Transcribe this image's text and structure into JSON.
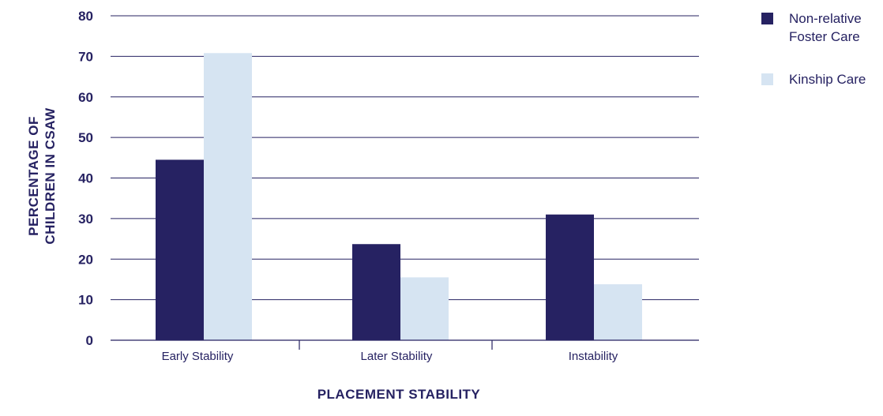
{
  "chart_data": {
    "type": "bar",
    "categories": [
      "Early Stability",
      "Later Stability",
      "Instability"
    ],
    "series": [
      {
        "name": "Non-relative Foster Care",
        "legend_lines": [
          "Non-relative",
          "Foster Care"
        ],
        "color": "#262262",
        "values": [
          44.5,
          23.7,
          31.0
        ]
      },
      {
        "name": "Kinship Care",
        "legend_lines": [
          "Kinship Care"
        ],
        "color": "#d6e4f2",
        "values": [
          70.8,
          15.5,
          13.8
        ]
      }
    ],
    "xlabel": "PLACEMENT STABILITY",
    "ylabel_lines": [
      "PERCENTAGE OF",
      "CHILDREN IN CSAW"
    ],
    "ylim": [
      0,
      80
    ],
    "yticks": [
      0,
      10,
      20,
      30,
      40,
      50,
      60,
      70,
      80
    ],
    "grid": true,
    "legend_position": "top-right"
  }
}
